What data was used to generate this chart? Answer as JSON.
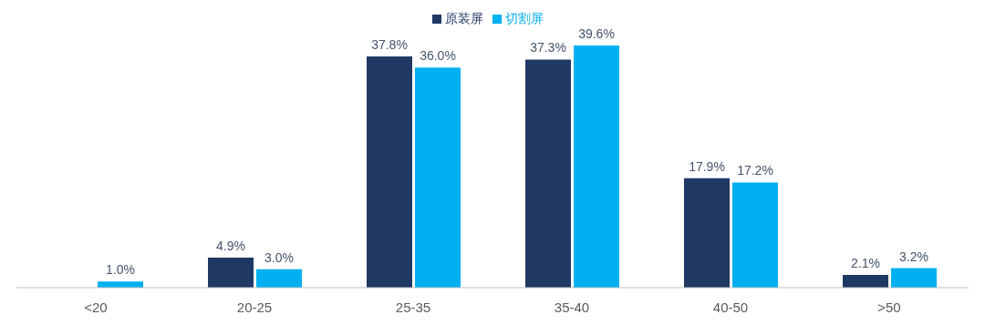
{
  "chart_data": {
    "type": "bar",
    "categories": [
      "<20",
      "20-25",
      "25-35",
      "35-40",
      "40-50",
      ">50"
    ],
    "series": [
      {
        "name": "原装屏",
        "color": "#203864",
        "values": [
          null,
          4.9,
          37.8,
          37.3,
          17.9,
          2.1
        ],
        "value_labels": [
          null,
          "4.9%",
          "37.8%",
          "37.3%",
          "17.9%",
          "2.1%"
        ]
      },
      {
        "name": "切割屏",
        "color": "#00b0f0",
        "values": [
          1.0,
          3.0,
          36.0,
          39.6,
          17.2,
          3.2
        ],
        "value_labels": [
          "1.0%",
          "3.0%",
          "36.0%",
          "39.6%",
          "17.2%",
          "3.2%"
        ]
      }
    ],
    "legend": "top",
    "grid": false
  }
}
